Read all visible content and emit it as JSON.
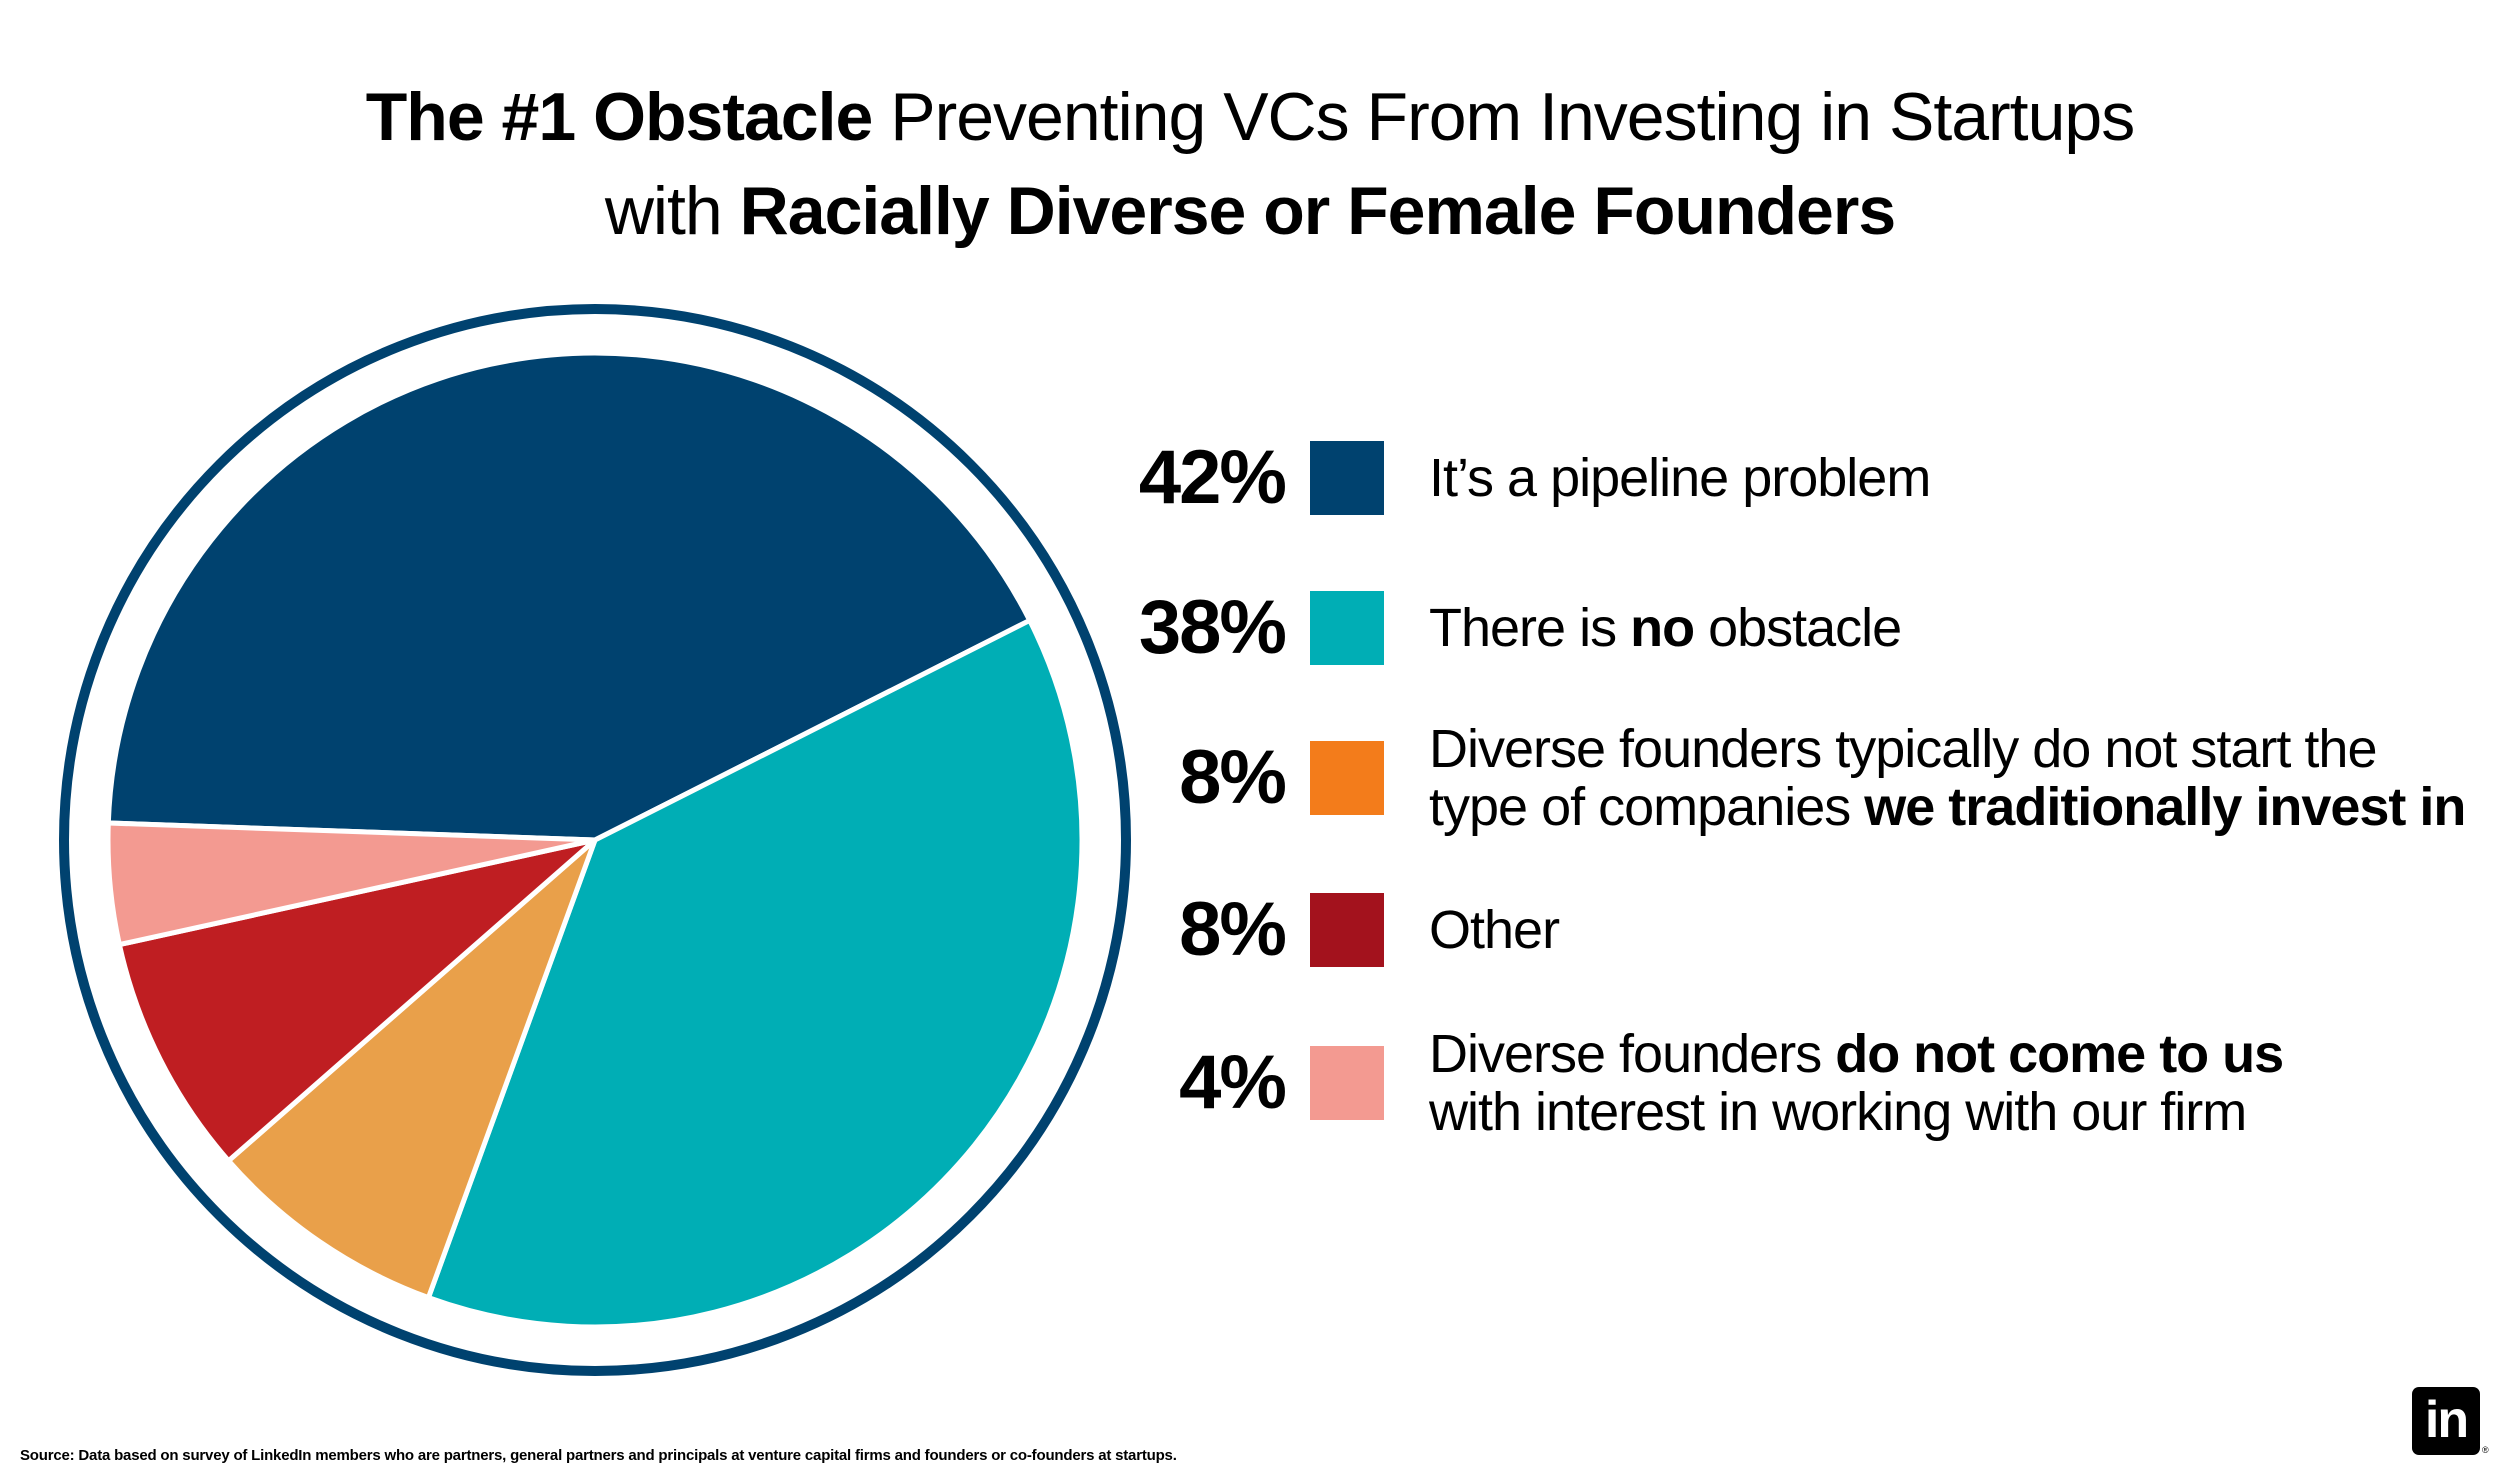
{
  "title": {
    "line1_bold": "The #1 Obstacle",
    "line1_rest": " Preventing VCs From Investing in Startups",
    "line2_pre": "with ",
    "line2_bold": "Racially Diverse or Female Founders"
  },
  "chart_data": {
    "type": "pie",
    "title": "The #1 Obstacle Preventing VCs From Investing in Startups with Racially Diverse or Female Founders",
    "slices": [
      {
        "label": "It’s a pipeline problem",
        "value": 42,
        "pct_label": "42%",
        "color": "#00426F",
        "legend_color": "#00426F"
      },
      {
        "label": "There is no obstacle",
        "value": 38,
        "pct_label": "38%",
        "color": "#00AEB5",
        "legend_color": "#00AEB5"
      },
      {
        "label": "Diverse founders typically do not start the type of companies we traditionally invest in",
        "value": 8,
        "pct_label": "8%",
        "color": "#E9A04A",
        "legend_color": "#F37C1B"
      },
      {
        "label": "Other",
        "value": 8,
        "pct_label": "8%",
        "color": "#BF1E22",
        "legend_color": "#A3121D"
      },
      {
        "label": "Diverse founders do not come to us with interest in working with our firm",
        "value": 4,
        "pct_label": "4%",
        "color": "#F39A91",
        "legend_color": "#F39A91"
      }
    ],
    "ring_color": "#00426F"
  },
  "legend": [
    {
      "pct": "42%",
      "parts": [
        {
          "text": "It’s a pipeline problem",
          "bold": false
        }
      ]
    },
    {
      "pct": "38%",
      "parts": [
        {
          "text": "There is ",
          "bold": false
        },
        {
          "text": "no",
          "bold": true
        },
        {
          "text": " obstacle",
          "bold": false
        }
      ]
    },
    {
      "pct": "8%",
      "line1": [
        {
          "text": "Diverse founders typically do not start the",
          "bold": false
        }
      ],
      "line2": [
        {
          "text": "type of companies ",
          "bold": false
        },
        {
          "text": "we traditionally invest in",
          "bold": true
        }
      ]
    },
    {
      "pct": "8%",
      "parts": [
        {
          "text": "Other",
          "bold": false
        }
      ]
    },
    {
      "pct": "4%",
      "line1": [
        {
          "text": "Diverse founders ",
          "bold": false
        },
        {
          "text": "do not come to us",
          "bold": true
        }
      ],
      "line2": [
        {
          "text": "with interest in working with our firm",
          "bold": false
        }
      ]
    }
  ],
  "source": "Source: Data based on survey of LinkedIn members who are partners, general partners and principals at venture capital firms and founders or co-founders at startups.",
  "logo": {
    "text": "in",
    "mark": "®"
  }
}
